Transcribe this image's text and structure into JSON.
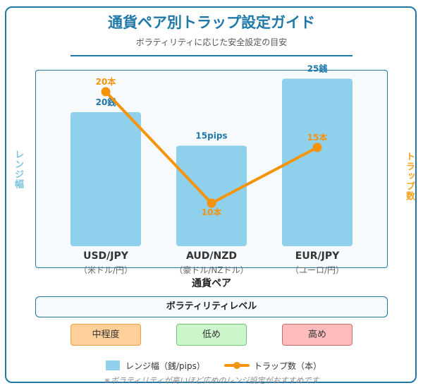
{
  "title": "通貨ペア別トラップ設定ガイド",
  "subtitle": "ボラティリティに応じた安全設定の目安",
  "y_left_label": "レンジ幅",
  "y_right_label": "トラップ数",
  "x_label": "通貨ペア",
  "volatility_header": "ボラティリティレベル",
  "pairs": [
    {
      "code": "USD/JPY",
      "name": "（米ドル/円）",
      "volatility": "中程度"
    },
    {
      "code": "AUD/NZD",
      "name": "（豪ドル/NZドル）",
      "volatility": "低め"
    },
    {
      "code": "EUR/JPY",
      "name": "（ユーロ/円）",
      "volatility": "高め"
    }
  ],
  "legend": {
    "range": "レンジ幅（銭/pips）",
    "traps": "トラップ数（本）"
  },
  "note": "※ボラティリティが高いほど広めのレンジ設定がおすすめです",
  "colors": {
    "accent": "#1f78a8",
    "bar": "#8fd0ec",
    "line": "#f5940c",
    "mid": "#ffd09a",
    "low": "#ccf5cc",
    "high": "#ffbcbc"
  },
  "chart_data": {
    "type": "bar",
    "categories": [
      "USD/JPY",
      "AUD/NZD",
      "EUR/JPY"
    ],
    "series": [
      {
        "name": "レンジ幅（銭/pips）",
        "type": "bar",
        "values": [
          20,
          15,
          25
        ],
        "labels": [
          "20銭",
          "15pips",
          "25銭"
        ]
      },
      {
        "name": "トラップ数（本）",
        "type": "line",
        "values": [
          20,
          10,
          15
        ],
        "labels": [
          "20本",
          "10本",
          "15本"
        ]
      }
    ],
    "xlabel": "通貨ペア",
    "ylabel_left": "レンジ幅",
    "ylabel_right": "トラップ数",
    "grid": false,
    "legend_position": "bottom"
  }
}
